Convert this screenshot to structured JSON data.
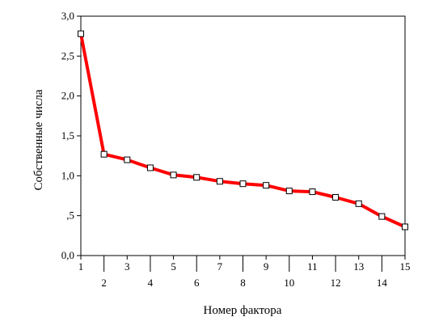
{
  "chart_data": {
    "type": "line",
    "title": "",
    "xlabel": "Номер фактора",
    "ylabel": "Собственные числа",
    "x": [
      1,
      2,
      3,
      4,
      5,
      6,
      7,
      8,
      9,
      10,
      11,
      12,
      13,
      14,
      15
    ],
    "xtick_labels": [
      "1",
      "2",
      "3",
      "4",
      "5",
      "6",
      "7",
      "8",
      "9",
      "10",
      "11",
      "12",
      "13",
      "14",
      "15"
    ],
    "ylim": [
      0,
      3.0
    ],
    "yticks": [
      0,
      0.5,
      1.0,
      1.5,
      2.0,
      2.5,
      3.0
    ],
    "ytick_labels": [
      "0,0",
      ",5",
      "1,0",
      "1,5",
      "2,0",
      "2,5",
      "3,0"
    ],
    "grid": false,
    "legend": "none",
    "series": [
      {
        "values": [
          2.78,
          1.27,
          1.2,
          1.1,
          1.01,
          0.98,
          0.93,
          0.9,
          0.88,
          0.81,
          0.8,
          0.73,
          0.65,
          0.49,
          0.36
        ],
        "color": "#ff0000",
        "marker": "open-square"
      }
    ]
  }
}
